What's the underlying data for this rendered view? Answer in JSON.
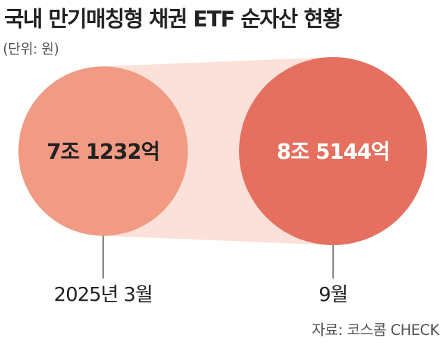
{
  "title": "국내 만기매칭형 채권 ETF 순자산 현황",
  "unit_note": "(단위: 원)",
  "source": "자료: 코스콤 CHECK",
  "colors": {
    "bubble_small": "#f19a84",
    "bubble_large": "#e5705f",
    "connector": "#fbe1d9",
    "value_text_small": "#222222",
    "value_text_large": "#ffffff",
    "leader_line": "#555555"
  },
  "chart_data": {
    "type": "bubble",
    "title": "국내 만기매칭형 채권 ETF 순자산 현황",
    "unit": "원",
    "categories": [
      "2025년 3월",
      "9월"
    ],
    "values": [
      71232,
      85144
    ],
    "value_units": "억원",
    "value_labels": [
      "7조 1232억",
      "8조 5144억"
    ]
  }
}
